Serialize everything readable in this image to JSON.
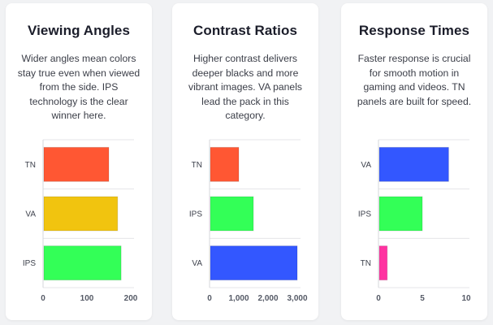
{
  "cards": [
    {
      "title": "Viewing Angles",
      "description": "Wider angles mean colors stay true even when viewed from the side. IPS technology is the clear winner here."
    },
    {
      "title": "Contrast Ratios",
      "description": "Higher contrast delivers deeper blacks and more vibrant images. VA panels lead the pack in this category."
    },
    {
      "title": "Response Times",
      "description": "Faster response is crucial for smooth motion in gaming and videos. TN panels are built for speed."
    }
  ],
  "chart_data": [
    {
      "type": "bar",
      "orientation": "horizontal",
      "categories": [
        "TN",
        "VA",
        "IPS"
      ],
      "values": [
        150,
        170,
        178
      ],
      "colors": [
        "#ff5733",
        "#f1c40f",
        "#33ff57"
      ],
      "xlim": [
        0,
        200
      ],
      "ticks": [
        0,
        100,
        200
      ],
      "tick_labels": [
        "0",
        "100",
        "200"
      ],
      "grid": "horizontal"
    },
    {
      "type": "bar",
      "orientation": "horizontal",
      "categories": [
        "TN",
        "IPS",
        "VA"
      ],
      "values": [
        1000,
        1500,
        3000
      ],
      "colors": [
        "#ff5733",
        "#33ff57",
        "#3357ff"
      ],
      "xlim": [
        0,
        3000
      ],
      "ticks": [
        0,
        1000,
        2000,
        3000
      ],
      "tick_labels": [
        "0",
        "1,000",
        "2,000",
        "3,000"
      ],
      "grid": "horizontal"
    },
    {
      "type": "bar",
      "orientation": "horizontal",
      "categories": [
        "VA",
        "IPS",
        "TN"
      ],
      "values": [
        8,
        5,
        1
      ],
      "colors": [
        "#3357ff",
        "#33ff57",
        "#ff33a1"
      ],
      "xlim": [
        0,
        10
      ],
      "ticks": [
        0,
        5,
        10
      ],
      "tick_labels": [
        "0",
        "5",
        "10"
      ],
      "grid": "horizontal"
    }
  ]
}
